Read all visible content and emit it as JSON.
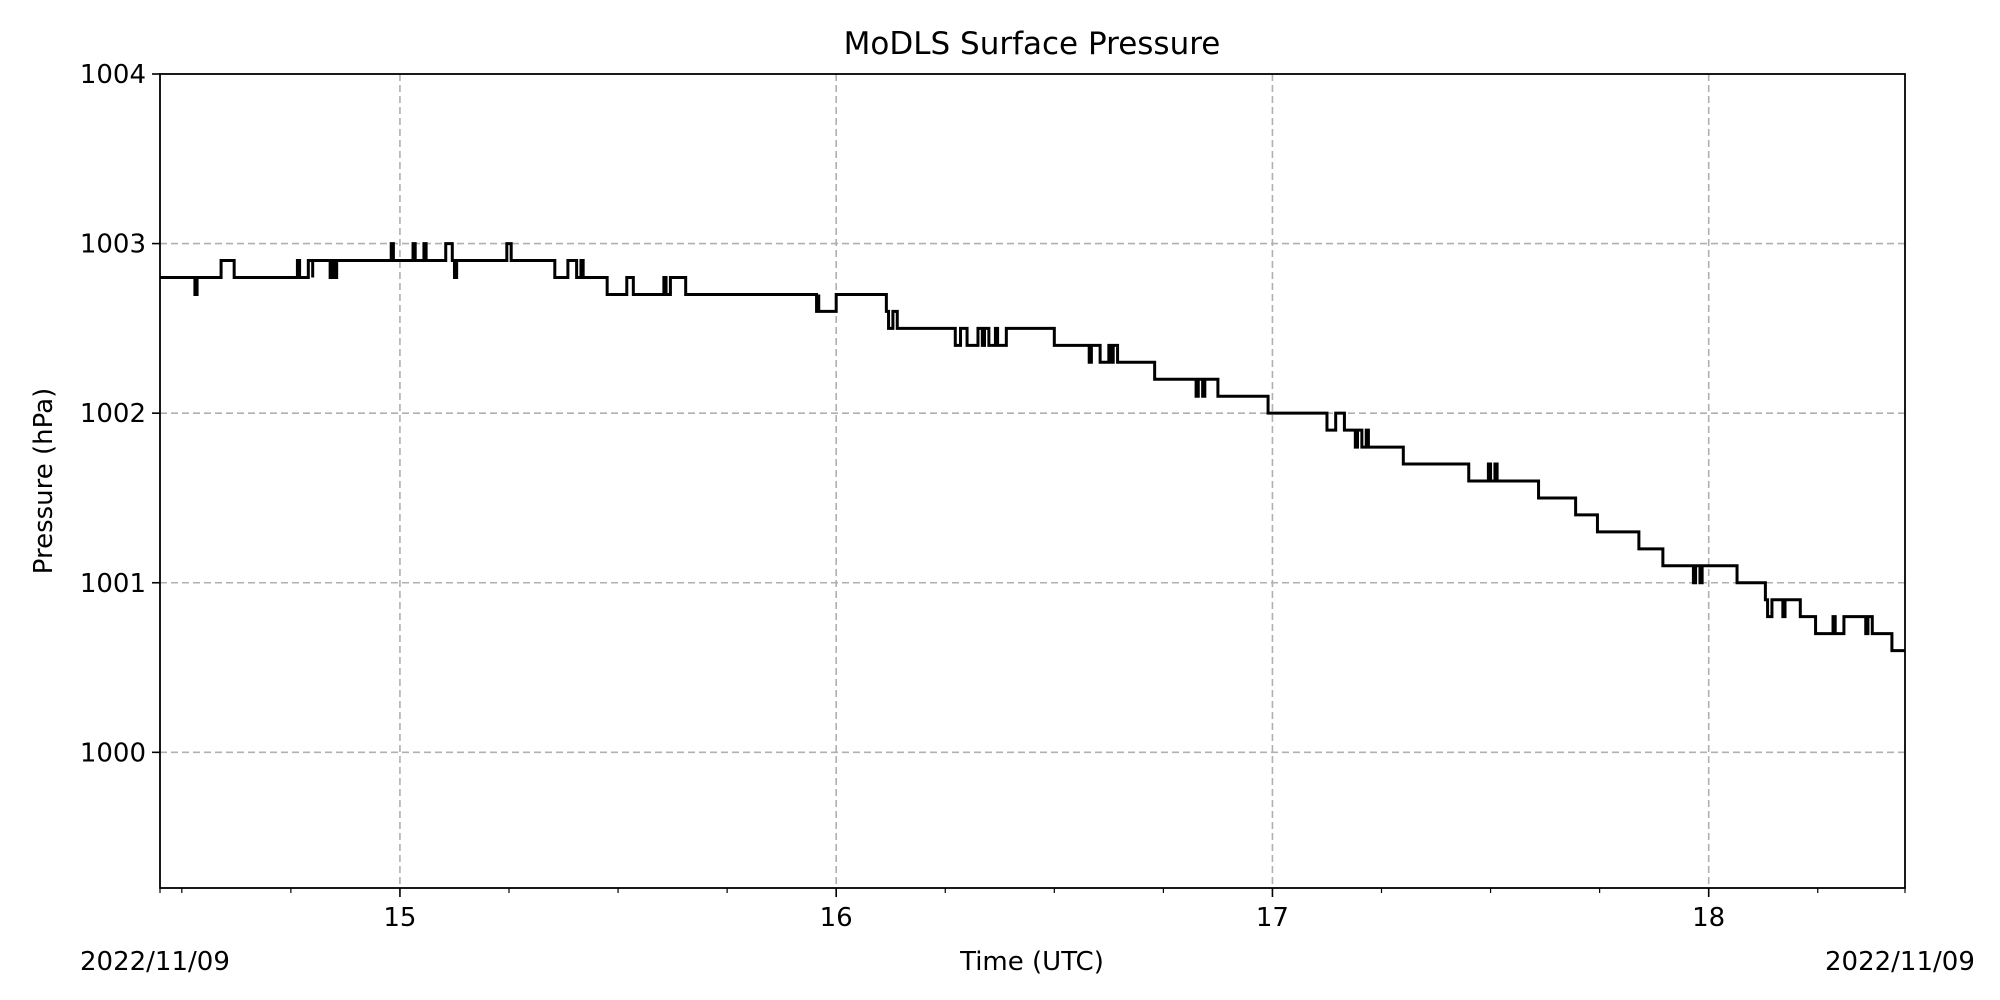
{
  "chart_data": {
    "type": "line",
    "title": "MoDLS Surface Pressure",
    "xlabel": "Time (UTC)",
    "ylabel": "Pressure (hPa)",
    "x_corner_labels": [
      "2022/11/09",
      "2022/11/09"
    ],
    "xlim": [
      14.45,
      18.45
    ],
    "ylim": [
      999.2,
      1004.0
    ],
    "x_ticks": [
      15,
      16,
      17,
      18
    ],
    "x_tick_labels": [
      "15",
      "16",
      "17",
      "18"
    ],
    "y_ticks": [
      1000,
      1001,
      1002,
      1003,
      1004
    ],
    "y_tick_labels": [
      "1000",
      "1001",
      "1002",
      "1003",
      "1004"
    ],
    "grid": true,
    "line_color": "#000000",
    "series": [
      {
        "step": true,
        "x": [
          14.45,
          14.53,
          14.535,
          14.59,
          14.62,
          14.765,
          14.77,
          14.79,
          14.8,
          14.8,
          14.81,
          14.84,
          14.845,
          14.85,
          14.855,
          14.98,
          14.985,
          15.03,
          15.035,
          15.055,
          15.06,
          15.105,
          15.12,
          15.125,
          15.13,
          15.245,
          15.255,
          15.355,
          15.385,
          15.405,
          15.415,
          15.42,
          15.475,
          15.52,
          15.535,
          15.605,
          15.61,
          15.62,
          15.655,
          15.955,
          15.96,
          15.96,
          15.995,
          16.0,
          16.115,
          16.12,
          16.13,
          16.14,
          16.273,
          16.285,
          16.3,
          16.325,
          16.335,
          16.34,
          16.35,
          16.365,
          16.37,
          16.39,
          16.41,
          16.5,
          16.58,
          16.585,
          16.605,
          16.625,
          16.63,
          16.635,
          16.645,
          16.73,
          16.825,
          16.83,
          16.84,
          16.845,
          16.875,
          16.99,
          17.125,
          17.145,
          17.165,
          17.19,
          17.195,
          17.205,
          17.215,
          17.22,
          17.3,
          17.45,
          17.495,
          17.5,
          17.51,
          17.515,
          17.61,
          17.695,
          17.745,
          17.84,
          17.895,
          17.965,
          17.97,
          17.98,
          17.985,
          18.065,
          18.13,
          18.135,
          18.145,
          18.17,
          18.175,
          18.21,
          18.245,
          18.285,
          18.29,
          18.31,
          18.36,
          18.365,
          18.375,
          18.42,
          18.45
        ],
        "y": [
          1002.8,
          1002.7,
          1002.8,
          1002.9,
          1002.8,
          1002.9,
          1002.8,
          1002.9,
          1002.8,
          1002.9,
          1002.9,
          1002.8,
          1002.9,
          1002.8,
          1002.9,
          1003.0,
          1002.9,
          1003.0,
          1002.9,
          1003.0,
          1002.9,
          1003.0,
          1002.9,
          1002.8,
          1002.9,
          1003.0,
          1002.9,
          1002.8,
          1002.9,
          1002.8,
          1002.9,
          1002.8,
          1002.7,
          1002.8,
          1002.7,
          1002.8,
          1002.7,
          1002.8,
          1002.7,
          1002.6,
          1002.7,
          1002.6,
          1002.6,
          1002.7,
          1002.6,
          1002.5,
          1002.6,
          1002.5,
          1002.4,
          1002.5,
          1002.4,
          1002.5,
          1002.4,
          1002.5,
          1002.4,
          1002.5,
          1002.4,
          1002.5,
          1002.5,
          1002.4,
          1002.3,
          1002.4,
          1002.3,
          1002.4,
          1002.3,
          1002.4,
          1002.3,
          1002.2,
          1002.1,
          1002.2,
          1002.1,
          1002.2,
          1002.1,
          1002.0,
          1001.9,
          1002.0,
          1001.9,
          1001.8,
          1001.9,
          1001.8,
          1001.9,
          1001.8,
          1001.7,
          1001.6,
          1001.7,
          1001.6,
          1001.7,
          1001.6,
          1001.5,
          1001.4,
          1001.3,
          1001.2,
          1001.1,
          1001.0,
          1001.1,
          1001.0,
          1001.1,
          1001.0,
          1000.9,
          1000.8,
          1000.9,
          1000.8,
          1000.9,
          1000.8,
          1000.7,
          1000.8,
          1000.7,
          1000.8,
          1000.7,
          1000.8,
          1000.7,
          1000.6,
          1000.6
        ]
      }
    ]
  }
}
